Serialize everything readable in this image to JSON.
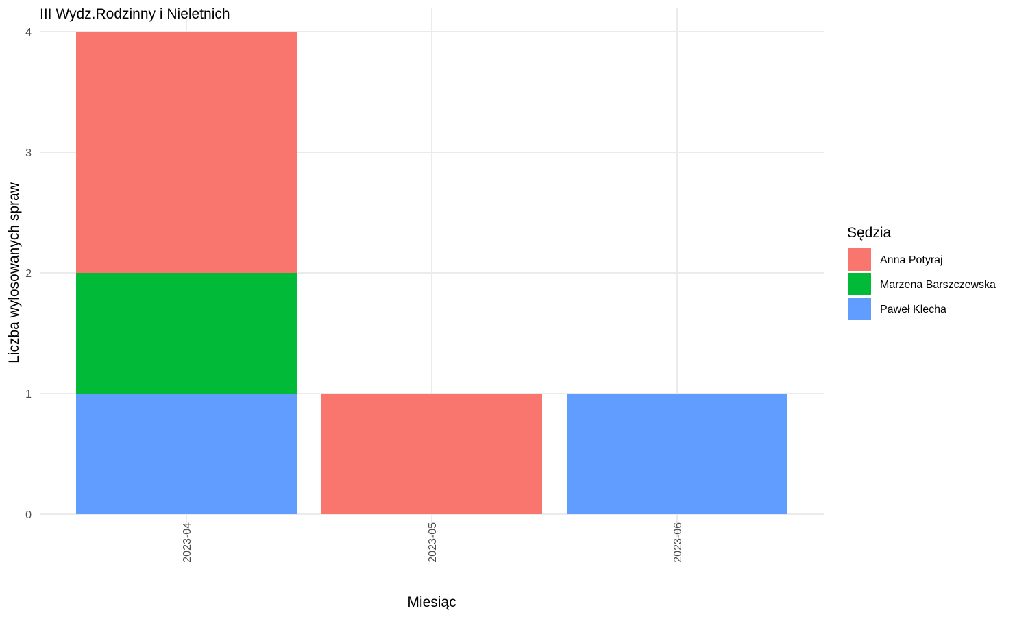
{
  "chart_data": {
    "type": "bar",
    "stacked": true,
    "title": "III Wydz.Rodzinny i Nieletnich",
    "xlabel": "Miesiąc",
    "ylabel": "Liczba wylosowanych spraw",
    "categories": [
      "2023-04",
      "2023-05",
      "2023-06"
    ],
    "ylim": [
      0,
      4
    ],
    "yticks": [
      0,
      1,
      2,
      3,
      4
    ],
    "grid": true,
    "x_tick_rotation": "vertical",
    "legend": {
      "title": "Sędzia",
      "position": "right"
    },
    "series": [
      {
        "name": "Paweł Klecha",
        "values": [
          1,
          0,
          1
        ],
        "color": "#619CFF"
      },
      {
        "name": "Marzena Barszczewska",
        "values": [
          1,
          0,
          0
        ],
        "color": "#00BA38"
      },
      {
        "name": "Anna Potyraj",
        "values": [
          2,
          1,
          0
        ],
        "color": "#F8766D"
      }
    ],
    "legend_order": [
      "Anna Potyraj",
      "Marzena Barszczewska",
      "Paweł Klecha"
    ]
  }
}
